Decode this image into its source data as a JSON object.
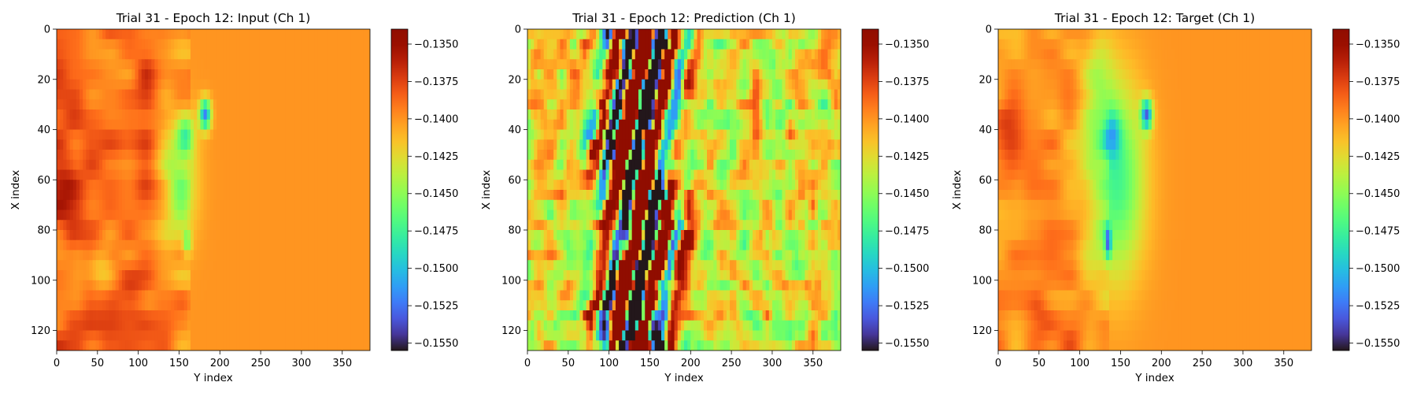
{
  "figure": {
    "background": "#ffffff"
  },
  "chart_data": [
    {
      "type": "heatmap",
      "title": "Trial 31 - Epoch 12: Input (Ch 1)",
      "xlabel": "Y index",
      "ylabel": "X index",
      "colormap": "turbo",
      "xlim": [
        0,
        384
      ],
      "ylim": [
        128,
        0
      ],
      "xticks": [
        0,
        50,
        100,
        150,
        200,
        250,
        300,
        350
      ],
      "yticks": [
        0,
        20,
        40,
        60,
        80,
        100,
        120
      ],
      "colorbar": {
        "range": [
          -0.1555,
          -0.134
        ],
        "ticks": [
          "−0.1350",
          "−0.1375",
          "−0.1400",
          "−0.1425",
          "−0.1450",
          "−0.1475",
          "−0.1500",
          "−0.1525",
          "−0.1550"
        ]
      },
      "field_description": "orange background ~-0.140, darker red streaks at Y 0-160, blue/cyan vortex near Y 180, X 35; green band near Y 130-170"
    },
    {
      "type": "heatmap",
      "title": "Trial 31 - Epoch 12: Prediction (Ch 1)",
      "xlabel": "Y index",
      "ylabel": "X index",
      "colormap": "turbo",
      "xlim": [
        0,
        384
      ],
      "ylim": [
        128,
        0
      ],
      "xticks": [
        0,
        50,
        100,
        150,
        200,
        250,
        300,
        350
      ],
      "yticks": [
        0,
        20,
        40,
        60,
        80,
        100,
        120
      ],
      "colorbar": {
        "range": [
          -0.1555,
          -0.134
        ],
        "ticks": [
          "−0.1350",
          "−0.1375",
          "−0.1400",
          "−0.1425",
          "−0.1450",
          "−0.1475",
          "−0.1500",
          "−0.1525",
          "−0.1550"
        ]
      },
      "field_description": "highly turbulent: saturated dark red and dark blue filaments at Y 90-180, mixed green/yellow/orange elsewhere"
    },
    {
      "type": "heatmap",
      "title": "Trial 31 - Epoch 12: Target (Ch 1)",
      "xlabel": "Y index",
      "ylabel": "X index",
      "colormap": "turbo",
      "xlim": [
        0,
        384
      ],
      "ylim": [
        128,
        0
      ],
      "xticks": [
        0,
        50,
        100,
        150,
        200,
        250,
        300,
        350
      ],
      "yticks": [
        0,
        20,
        40,
        60,
        80,
        100,
        120
      ],
      "colorbar": {
        "range": [
          -0.1555,
          -0.134
        ],
        "ticks": [
          "−0.1350",
          "−0.1375",
          "−0.1400",
          "−0.1425",
          "−0.1450",
          "−0.1475",
          "−0.1500",
          "−0.1525",
          "−0.1550"
        ]
      },
      "field_description": "orange background ~-0.140, green region Y 90-180, blue spots near Y 140 X 40 and Y 180 X 35, X 85"
    }
  ]
}
